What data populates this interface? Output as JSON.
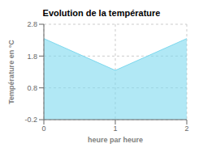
{
  "chart_data": {
    "type": "area",
    "title": "Evolution de la température",
    "xlabel": "heure par heure",
    "ylabel": "Température en °C",
    "x": [
      0,
      1,
      2
    ],
    "values": [
      2.35,
      1.35,
      2.35
    ],
    "xlim": [
      0,
      2
    ],
    "ylim": [
      -0.2,
      2.8
    ],
    "xticks": [
      0,
      1,
      2
    ],
    "yticks": [
      -0.2,
      0.8,
      1.8,
      2.8
    ],
    "color": "#7dd8ee",
    "grid": true
  }
}
